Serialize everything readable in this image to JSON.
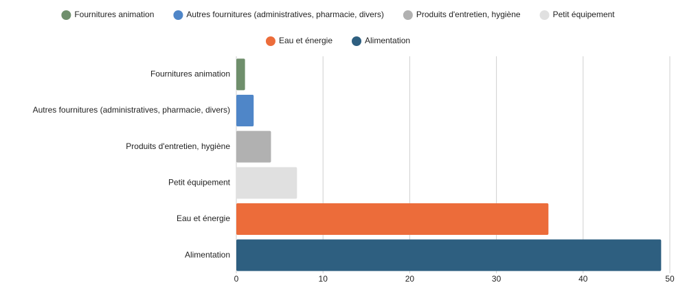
{
  "chart_data": {
    "type": "hbar",
    "categories": [
      "Fournitures animation",
      "Autres fournitures (administratives, pharmacie, divers)",
      "Produits d'entretien, hygiène",
      "Petit équipement",
      "Eau et énergie",
      "Alimentation"
    ],
    "values": [
      1,
      2,
      4,
      7,
      36,
      49
    ],
    "colors": [
      "#6f8f6c",
      "#4f86c8",
      "#b1b1b1",
      "#e0e0e0",
      "#ec6c3a",
      "#2e5f80"
    ],
    "xlim": [
      0,
      50
    ],
    "xticks": [
      0,
      10,
      20,
      30,
      40,
      50
    ],
    "grid": true,
    "legend": "top"
  }
}
